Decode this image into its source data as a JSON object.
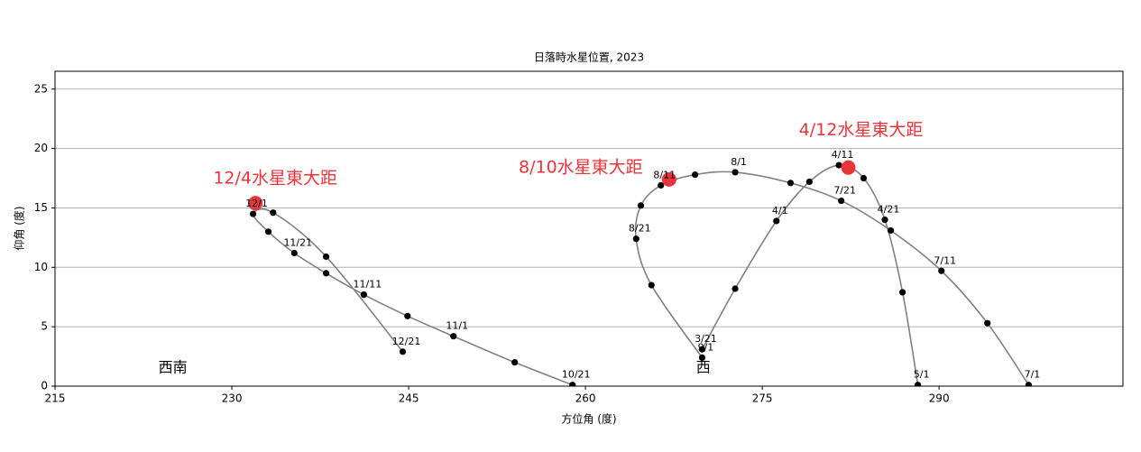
{
  "chart_data": {
    "type": "line",
    "title": "日落時水星位置, 2023",
    "x_label": "方位角 (度)",
    "y_label": "仰角 (度)",
    "xlim": [
      215,
      305.6
    ],
    "ylim": [
      0,
      26.5
    ],
    "xticks": [
      215,
      230,
      245,
      260,
      275,
      290
    ],
    "yticks": [
      0,
      5,
      10,
      15,
      20,
      25
    ],
    "grid": true,
    "color": "#808080",
    "point_color": "#000000",
    "highlight_color": "#e8353b",
    "series": [
      {
        "x": [
          269.9,
          272.7,
          276.2,
          279.0,
          281.5,
          283.6,
          285.4,
          286.9,
          288.2
        ],
        "values": [
          3.1,
          8.2,
          13.9,
          17.2,
          18.6,
          17.5,
          14.0,
          7.9,
          0.1
        ],
        "labels": [
          "3/21",
          null,
          "4/1",
          null,
          "4/11",
          null,
          "4/21",
          null,
          "5/1"
        ]
      },
      {
        "x": [
          297.6,
          294.1,
          290.2,
          285.9,
          281.7,
          277.4,
          272.7,
          269.3,
          266.4,
          264.7,
          264.3,
          265.6,
          269.9
        ],
        "values": [
          0.1,
          5.3,
          9.7,
          13.1,
          15.6,
          17.1,
          18.0,
          17.8,
          16.9,
          15.2,
          12.4,
          8.5,
          2.4
        ],
        "labels": [
          "7/1",
          null,
          "7/11",
          null,
          "7/21",
          null,
          "8/1",
          null,
          "8/11",
          null,
          "8/21",
          null,
          "9/1"
        ]
      },
      {
        "x": [
          258.9,
          254.0,
          248.8,
          244.9,
          241.2,
          238.0,
          235.3,
          233.1,
          231.8,
          233.5,
          238.0,
          244.5
        ],
        "values": [
          0.1,
          2.0,
          4.2,
          5.9,
          7.7,
          9.5,
          11.2,
          13.0,
          14.5,
          14.6,
          10.9,
          2.9
        ],
        "labels": [
          "10/21",
          null,
          "11/1",
          null,
          "11/11",
          null,
          "11/21",
          null,
          "12/1",
          null,
          null,
          "12/21"
        ]
      }
    ],
    "annotations": [
      {
        "text": "12/4水星東大距",
        "x": 232.0,
        "y": 15.4
      },
      {
        "text": "8/10水星東大距",
        "x": 267.1,
        "y": 17.4
      },
      {
        "text": "4/12水星東大距",
        "x": 282.3,
        "y": 18.4
      }
    ],
    "direction_labels": [
      {
        "text": "西南",
        "x": 225
      },
      {
        "text": "西",
        "x": 270
      }
    ]
  }
}
